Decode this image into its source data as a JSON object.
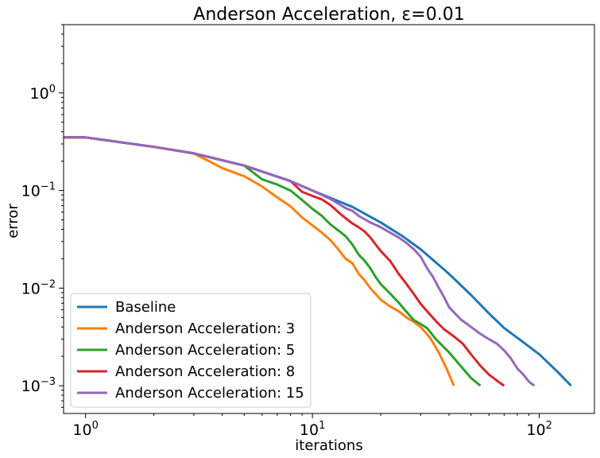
{
  "chart_data": {
    "type": "line",
    "title": "Anderson Acceleration, ε=0.01",
    "xlabel": "iterations",
    "ylabel": "error",
    "xscale": "log",
    "yscale": "log",
    "xlim": [
      0.8,
      175
    ],
    "ylim": [
      0.00052,
      5.0
    ],
    "x_ticks": [
      {
        "value": 1,
        "label": "10",
        "exp": "0"
      },
      {
        "value": 10,
        "label": "10",
        "exp": "1"
      },
      {
        "value": 100,
        "label": "10",
        "exp": "2"
      }
    ],
    "y_ticks": [
      {
        "value": 0.001,
        "label": "10",
        "exp": "−3"
      },
      {
        "value": 0.01,
        "label": "10",
        "exp": "−2"
      },
      {
        "value": 0.1,
        "label": "10",
        "exp": "−1"
      },
      {
        "value": 1,
        "label": "10",
        "exp": "0"
      }
    ],
    "grid": false,
    "legend_position": "lower-left",
    "series": [
      {
        "name": "Baseline",
        "color": "#1f77b4",
        "points": [
          [
            0.8,
            0.35
          ],
          [
            1,
            0.35
          ],
          [
            2,
            0.28
          ],
          [
            3,
            0.24
          ],
          [
            5,
            0.18
          ],
          [
            8,
            0.125
          ],
          [
            10,
            0.1
          ],
          [
            15,
            0.068
          ],
          [
            20,
            0.047
          ],
          [
            25,
            0.034
          ],
          [
            30,
            0.025
          ],
          [
            40,
            0.014
          ],
          [
            50,
            0.0085
          ],
          [
            60,
            0.0055
          ],
          [
            70,
            0.0039
          ],
          [
            80,
            0.0031
          ],
          [
            100,
            0.0021
          ],
          [
            120,
            0.0014
          ],
          [
            138,
            0.001
          ]
        ]
      },
      {
        "name": "Anderson Acceleration: 3",
        "color": "#ff7f0e",
        "points": [
          [
            0.8,
            0.35
          ],
          [
            1,
            0.35
          ],
          [
            2,
            0.28
          ],
          [
            3,
            0.24
          ],
          [
            4,
            0.17
          ],
          [
            5,
            0.14
          ],
          [
            6,
            0.11
          ],
          [
            7,
            0.085
          ],
          [
            8,
            0.069
          ],
          [
            9,
            0.053
          ],
          [
            10,
            0.044
          ],
          [
            11,
            0.037
          ],
          [
            12,
            0.031
          ],
          [
            13,
            0.025
          ],
          [
            14,
            0.02
          ],
          [
            15,
            0.018
          ],
          [
            16,
            0.014
          ],
          [
            17,
            0.012
          ],
          [
            18,
            0.01
          ],
          [
            19,
            0.0087
          ],
          [
            20,
            0.0076
          ],
          [
            22,
            0.0065
          ],
          [
            24,
            0.0058
          ],
          [
            26,
            0.005
          ],
          [
            28,
            0.0045
          ],
          [
            30,
            0.004
          ],
          [
            33,
            0.0031
          ],
          [
            36,
            0.0022
          ],
          [
            39,
            0.0015
          ],
          [
            42,
            0.001
          ]
        ]
      },
      {
        "name": "Anderson Acceleration: 5",
        "color": "#2ca02c",
        "points": [
          [
            0.8,
            0.35
          ],
          [
            1,
            0.35
          ],
          [
            2,
            0.28
          ],
          [
            3,
            0.24
          ],
          [
            5,
            0.18
          ],
          [
            6,
            0.13
          ],
          [
            7,
            0.115
          ],
          [
            8,
            0.1
          ],
          [
            9,
            0.08
          ],
          [
            10,
            0.065
          ],
          [
            11,
            0.055
          ],
          [
            12,
            0.045
          ],
          [
            13,
            0.039
          ],
          [
            14,
            0.034
          ],
          [
            15,
            0.028
          ],
          [
            16,
            0.022
          ],
          [
            17,
            0.019
          ],
          [
            18,
            0.016
          ],
          [
            19,
            0.013
          ],
          [
            20,
            0.011
          ],
          [
            22,
            0.0088
          ],
          [
            24,
            0.0071
          ],
          [
            26,
            0.0057
          ],
          [
            28,
            0.0047
          ],
          [
            30,
            0.0043
          ],
          [
            32,
            0.0039
          ],
          [
            35,
            0.003
          ],
          [
            40,
            0.0022
          ],
          [
            45,
            0.0016
          ],
          [
            50,
            0.0012
          ],
          [
            55,
            0.001
          ]
        ]
      },
      {
        "name": "Anderson Acceleration: 8",
        "color": "#d62728",
        "points": [
          [
            0.8,
            0.35
          ],
          [
            1,
            0.35
          ],
          [
            2,
            0.28
          ],
          [
            3,
            0.24
          ],
          [
            5,
            0.18
          ],
          [
            8,
            0.125
          ],
          [
            9,
            0.097
          ],
          [
            10,
            0.088
          ],
          [
            11,
            0.081
          ],
          [
            12,
            0.071
          ],
          [
            13,
            0.06
          ],
          [
            14,
            0.052
          ],
          [
            15,
            0.046
          ],
          [
            16,
            0.042
          ],
          [
            17,
            0.038
          ],
          [
            18,
            0.033
          ],
          [
            19,
            0.028
          ],
          [
            20,
            0.024
          ],
          [
            22,
            0.019
          ],
          [
            24,
            0.014
          ],
          [
            26,
            0.011
          ],
          [
            28,
            0.0087
          ],
          [
            30,
            0.0069
          ],
          [
            32,
            0.0058
          ],
          [
            35,
            0.0046
          ],
          [
            38,
            0.0038
          ],
          [
            42,
            0.0032
          ],
          [
            46,
            0.0027
          ],
          [
            50,
            0.0021
          ],
          [
            55,
            0.0016
          ],
          [
            60,
            0.0013
          ],
          [
            66,
            0.0011
          ],
          [
            70,
            0.001
          ]
        ]
      },
      {
        "name": "Anderson Acceleration: 15",
        "color": "#9467bd",
        "points": [
          [
            0.8,
            0.35
          ],
          [
            1,
            0.35
          ],
          [
            2,
            0.28
          ],
          [
            3,
            0.24
          ],
          [
            5,
            0.18
          ],
          [
            8,
            0.125
          ],
          [
            10,
            0.1
          ],
          [
            12,
            0.082
          ],
          [
            14,
            0.066
          ],
          [
            15,
            0.062
          ],
          [
            16,
            0.055
          ],
          [
            18,
            0.047
          ],
          [
            20,
            0.042
          ],
          [
            22,
            0.037
          ],
          [
            24,
            0.033
          ],
          [
            26,
            0.029
          ],
          [
            28,
            0.025
          ],
          [
            30,
            0.021
          ],
          [
            32,
            0.016
          ],
          [
            34,
            0.013
          ],
          [
            36,
            0.0101
          ],
          [
            38,
            0.0081
          ],
          [
            40,
            0.0064
          ],
          [
            45,
            0.0048
          ],
          [
            50,
            0.004
          ],
          [
            55,
            0.0034
          ],
          [
            60,
            0.003
          ],
          [
            65,
            0.0027
          ],
          [
            70,
            0.0023
          ],
          [
            75,
            0.0019
          ],
          [
            80,
            0.0015
          ],
          [
            85,
            0.0013
          ],
          [
            90,
            0.0011
          ],
          [
            95,
            0.001
          ]
        ]
      }
    ]
  }
}
